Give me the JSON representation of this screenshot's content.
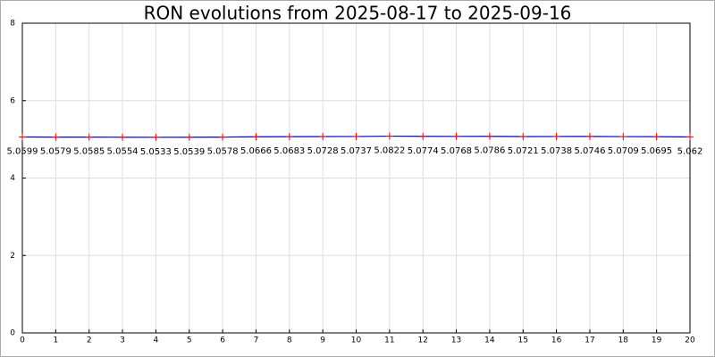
{
  "chart_data": {
    "type": "line",
    "title": "RON evolutions from 2025-08-17 to 2025-09-16",
    "x": [
      0,
      1,
      2,
      3,
      4,
      5,
      6,
      7,
      8,
      9,
      10,
      11,
      12,
      13,
      14,
      15,
      16,
      17,
      18,
      19,
      20
    ],
    "series": [
      {
        "color": "#0000cc",
        "marker_color": "#ff0000",
        "values": [
          5.0599,
          5.0579,
          5.0585,
          5.0554,
          5.0533,
          5.0539,
          5.0578,
          5.0666,
          5.0683,
          5.0728,
          5.0737,
          5.0822,
          5.0774,
          5.0768,
          5.0786,
          5.0721,
          5.0738,
          5.0746,
          5.0709,
          5.0695,
          5.062
        ]
      }
    ],
    "xlim": [
      0,
      20
    ],
    "xticks": [
      0,
      1,
      2,
      3,
      4,
      5,
      6,
      7,
      8,
      9,
      10,
      11,
      12,
      13,
      14,
      15,
      16,
      17,
      18,
      19,
      20
    ],
    "ylim": [
      0,
      8
    ],
    "yticks": [
      0,
      2,
      4,
      6,
      8
    ],
    "grid": true
  }
}
